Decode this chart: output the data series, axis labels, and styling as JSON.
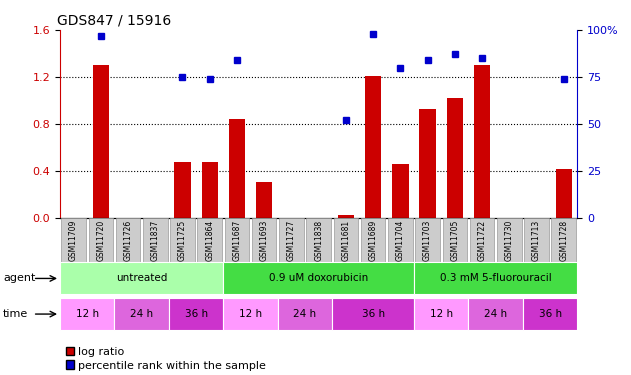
{
  "title": "GDS847 / 15916",
  "samples": [
    "GSM11709",
    "GSM11720",
    "GSM11726",
    "GSM11837",
    "GSM11725",
    "GSM11864",
    "GSM11687",
    "GSM11693",
    "GSM11727",
    "GSM11838",
    "GSM11681",
    "GSM11689",
    "GSM11704",
    "GSM11703",
    "GSM11705",
    "GSM11722",
    "GSM11730",
    "GSM11713",
    "GSM11728"
  ],
  "log_ratio": [
    0.0,
    1.3,
    0.0,
    0.0,
    0.47,
    0.47,
    0.84,
    0.3,
    0.0,
    0.0,
    0.02,
    1.21,
    0.46,
    0.93,
    1.02,
    1.3,
    0.0,
    0.0,
    0.41
  ],
  "percentile": [
    null,
    97,
    null,
    null,
    75,
    74,
    84,
    null,
    null,
    null,
    52,
    98,
    80,
    84,
    87,
    85,
    null,
    null,
    74
  ],
  "bar_color": "#cc0000",
  "dot_color": "#0000cc",
  "ylim_left": [
    0,
    1.6
  ],
  "ylim_right": [
    0,
    100
  ],
  "yticks_left": [
    0,
    0.4,
    0.8,
    1.2,
    1.6
  ],
  "yticks_right": [
    0,
    25,
    50,
    75,
    100
  ],
  "agent_groups": [
    {
      "label": "untreated",
      "start": 0,
      "end": 6,
      "color": "#aaffaa"
    },
    {
      "label": "0.9 uM doxorubicin",
      "start": 6,
      "end": 13,
      "color": "#44dd44"
    },
    {
      "label": "0.3 mM 5-fluorouracil",
      "start": 13,
      "end": 19,
      "color": "#44dd44"
    }
  ],
  "time_groups": [
    {
      "label": "12 h",
      "start": 0,
      "end": 2,
      "color": "#ff99ff"
    },
    {
      "label": "24 h",
      "start": 2,
      "end": 4,
      "color": "#dd66dd"
    },
    {
      "label": "36 h",
      "start": 4,
      "end": 6,
      "color": "#cc33cc"
    },
    {
      "label": "12 h",
      "start": 6,
      "end": 8,
      "color": "#ff99ff"
    },
    {
      "label": "24 h",
      "start": 8,
      "end": 10,
      "color": "#dd66dd"
    },
    {
      "label": "36 h",
      "start": 10,
      "end": 13,
      "color": "#cc33cc"
    },
    {
      "label": "12 h",
      "start": 13,
      "end": 15,
      "color": "#ff99ff"
    },
    {
      "label": "24 h",
      "start": 15,
      "end": 17,
      "color": "#dd66dd"
    },
    {
      "label": "36 h",
      "start": 17,
      "end": 19,
      "color": "#cc33cc"
    }
  ],
  "legend_log_ratio": "log ratio",
  "legend_percentile": "percentile rank within the sample",
  "agent_label": "agent",
  "time_label": "time",
  "background_color": "#ffffff",
  "tick_label_color_left": "#cc0000",
  "tick_label_color_right": "#0000cc",
  "sample_box_color": "#cccccc",
  "sample_box_edge": "#999999"
}
